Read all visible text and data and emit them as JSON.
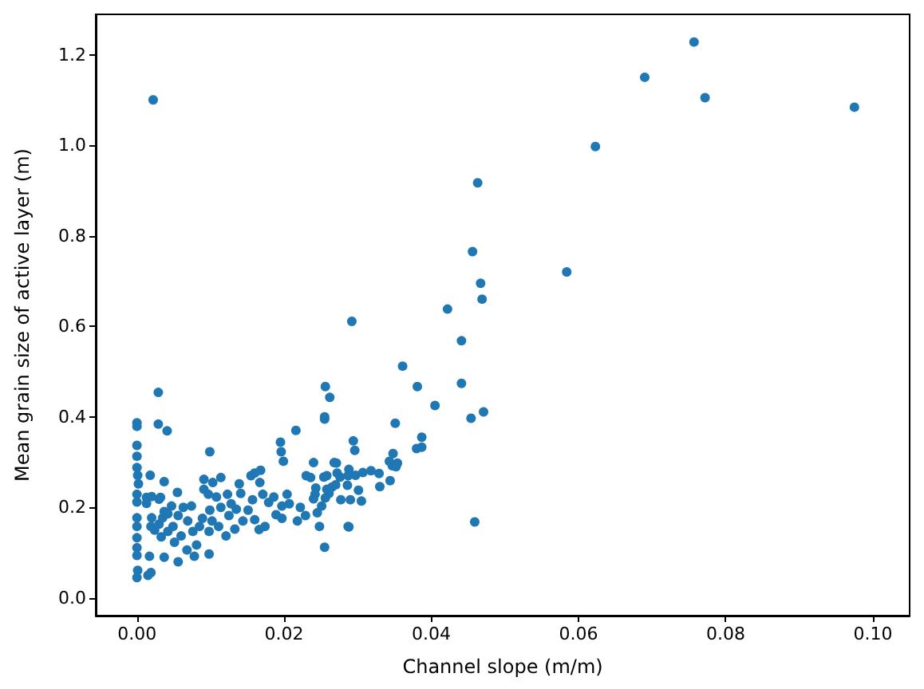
{
  "chart_data": {
    "type": "scatter",
    "xlabel": "Channel slope (m/m)",
    "ylabel": "Mean grain size of active layer (m)",
    "xlim": [
      -0.0056,
      0.105
    ],
    "ylim": [
      -0.039,
      1.289
    ],
    "xticks": [
      {
        "value": 0,
        "label": "0.00"
      },
      {
        "value": 0.02,
        "label": "0.02"
      },
      {
        "value": 0.04,
        "label": "0.04"
      },
      {
        "value": 0.06,
        "label": "0.06"
      },
      {
        "value": 0.08,
        "label": "0.08"
      },
      {
        "value": 0.1,
        "label": "0.10"
      }
    ],
    "yticks": [
      {
        "value": 0,
        "label": "0.0"
      },
      {
        "value": 0.2,
        "label": "0.2"
      },
      {
        "value": 0.4,
        "label": "0.4"
      },
      {
        "value": 0.6,
        "label": "0.6"
      },
      {
        "value": 0.8,
        "label": "0.8"
      },
      {
        "value": 1.0,
        "label": "1.0"
      },
      {
        "value": 1.2,
        "label": "1.2"
      }
    ],
    "grid": false,
    "marker": "circle",
    "series": [
      {
        "color": "#1f77b4",
        "x": [
          0.0022,
          0.0757,
          0.069,
          0.0772,
          0.0975,
          0.0623,
          0.0463,
          0.0456,
          0.0584,
          0.0467,
          0.0469,
          0.0422,
          0.0292,
          0.0441,
          0.0361,
          0.0381,
          0.0441,
          0.0405,
          0.0256,
          0.0262,
          0.0255,
          0.0255,
          0.0454,
          0.0471,
          0.0351,
          0.0294,
          0.0296,
          0.0387,
          0.038,
          0.0387,
          0.0348,
          0.0271,
          0.0343,
          0.0354,
          0.0347,
          0.0352,
          0.0254,
          0.0272,
          0.0276,
          0.0288,
          0.0297,
          0.0307,
          0.0318,
          0.0329,
          0.0344,
          0.0286,
          0.033,
          0.0301,
          0.0258,
          0.0265,
          0.0261,
          0.0256,
          0.0277,
          0.029,
          0.0305,
          0.0459,
          0.0288,
          0.0255,
          0.0029,
          0.0,
          0.0,
          0.0029,
          0.0041,
          0.0,
          0.0,
          0.0,
          0.0001,
          0.0018,
          0.0037,
          0.0002,
          0.0,
          0.0013,
          0.003,
          0.0,
          0.0013,
          0.002,
          0.0032,
          0.0055,
          0.0047,
          0.0037,
          0.002,
          0.0,
          0.0,
          0.0,
          0.0,
          0.0,
          0.0001,
          0.0,
          0.0015,
          0.0019,
          0.0017,
          0.0037,
          0.0019,
          0.0024,
          0.003,
          0.0035,
          0.0042,
          0.0033,
          0.0042,
          0.0049,
          0.0051,
          0.006,
          0.0056,
          0.0063,
          0.0069,
          0.0074,
          0.0056,
          0.0068,
          0.0078,
          0.0081,
          0.0076,
          0.0085,
          0.0089,
          0.0091,
          0.0091,
          0.0099,
          0.0097,
          0.0103,
          0.0099,
          0.0102,
          0.0098,
          0.0098,
          0.0108,
          0.0114,
          0.0114,
          0.0111,
          0.0121,
          0.0123,
          0.0125,
          0.0128,
          0.0133,
          0.0135,
          0.0139,
          0.0141,
          0.0144,
          0.0155,
          0.016,
          0.0168,
          0.0157,
          0.0151,
          0.016,
          0.0167,
          0.0171,
          0.0179,
          0.0166,
          0.0174,
          0.0195,
          0.0196,
          0.0199,
          0.0186,
          0.0189,
          0.0197,
          0.0204,
          0.0207,
          0.0197,
          0.0216,
          0.0222,
          0.0218,
          0.0229,
          0.023,
          0.024,
          0.0236,
          0.0242,
          0.024,
          0.0248,
          0.0245,
          0.0251,
          0.0243,
          0.0258,
          0.0268,
          0.027,
          0.0287,
          0.0287
        ],
        "values": [
          1.1,
          1.228,
          1.15,
          1.105,
          1.084,
          0.997,
          0.917,
          0.765,
          0.72,
          0.695,
          0.66,
          0.638,
          0.611,
          0.568,
          0.512,
          0.467,
          0.474,
          0.425,
          0.467,
          0.443,
          0.4,
          0.395,
          0.397,
          0.411,
          0.386,
          0.347,
          0.326,
          0.355,
          0.33,
          0.333,
          0.319,
          0.298,
          0.302,
          0.298,
          0.292,
          0.29,
          0.267,
          0.276,
          0.267,
          0.284,
          0.271,
          0.277,
          0.281,
          0.275,
          0.259,
          0.249,
          0.246,
          0.238,
          0.24,
          0.245,
          0.231,
          0.221,
          0.217,
          0.217,
          0.214,
          0.168,
          0.157,
          0.112,
          0.454,
          0.387,
          0.379,
          0.384,
          0.369,
          0.337,
          0.313,
          0.288,
          0.271,
          0.271,
          0.257,
          0.252,
          0.229,
          0.222,
          0.218,
          0.212,
          0.209,
          0.224,
          0.222,
          0.233,
          0.203,
          0.191,
          0.177,
          0.177,
          0.158,
          0.133,
          0.111,
          0.094,
          0.061,
          0.045,
          0.05,
          0.056,
          0.092,
          0.09,
          0.158,
          0.15,
          0.163,
          0.177,
          0.186,
          0.135,
          0.147,
          0.158,
          0.123,
          0.137,
          0.182,
          0.2,
          0.17,
          0.203,
          0.08,
          0.106,
          0.092,
          0.117,
          0.147,
          0.158,
          0.176,
          0.262,
          0.24,
          0.323,
          0.229,
          0.255,
          0.194,
          0.17,
          0.147,
          0.097,
          0.223,
          0.266,
          0.2,
          0.158,
          0.137,
          0.229,
          0.182,
          0.208,
          0.152,
          0.196,
          0.252,
          0.231,
          0.17,
          0.27,
          0.276,
          0.282,
          0.217,
          0.194,
          0.173,
          0.255,
          0.229,
          0.211,
          0.151,
          0.158,
          0.344,
          0.323,
          0.302,
          0.223,
          0.184,
          0.203,
          0.229,
          0.208,
          0.176,
          0.37,
          0.2,
          0.17,
          0.182,
          0.27,
          0.299,
          0.266,
          0.229,
          0.219,
          0.158,
          0.188,
          0.203,
          0.243,
          0.27,
          0.299,
          0.25,
          0.27,
          0.158
        ]
      }
    ]
  }
}
